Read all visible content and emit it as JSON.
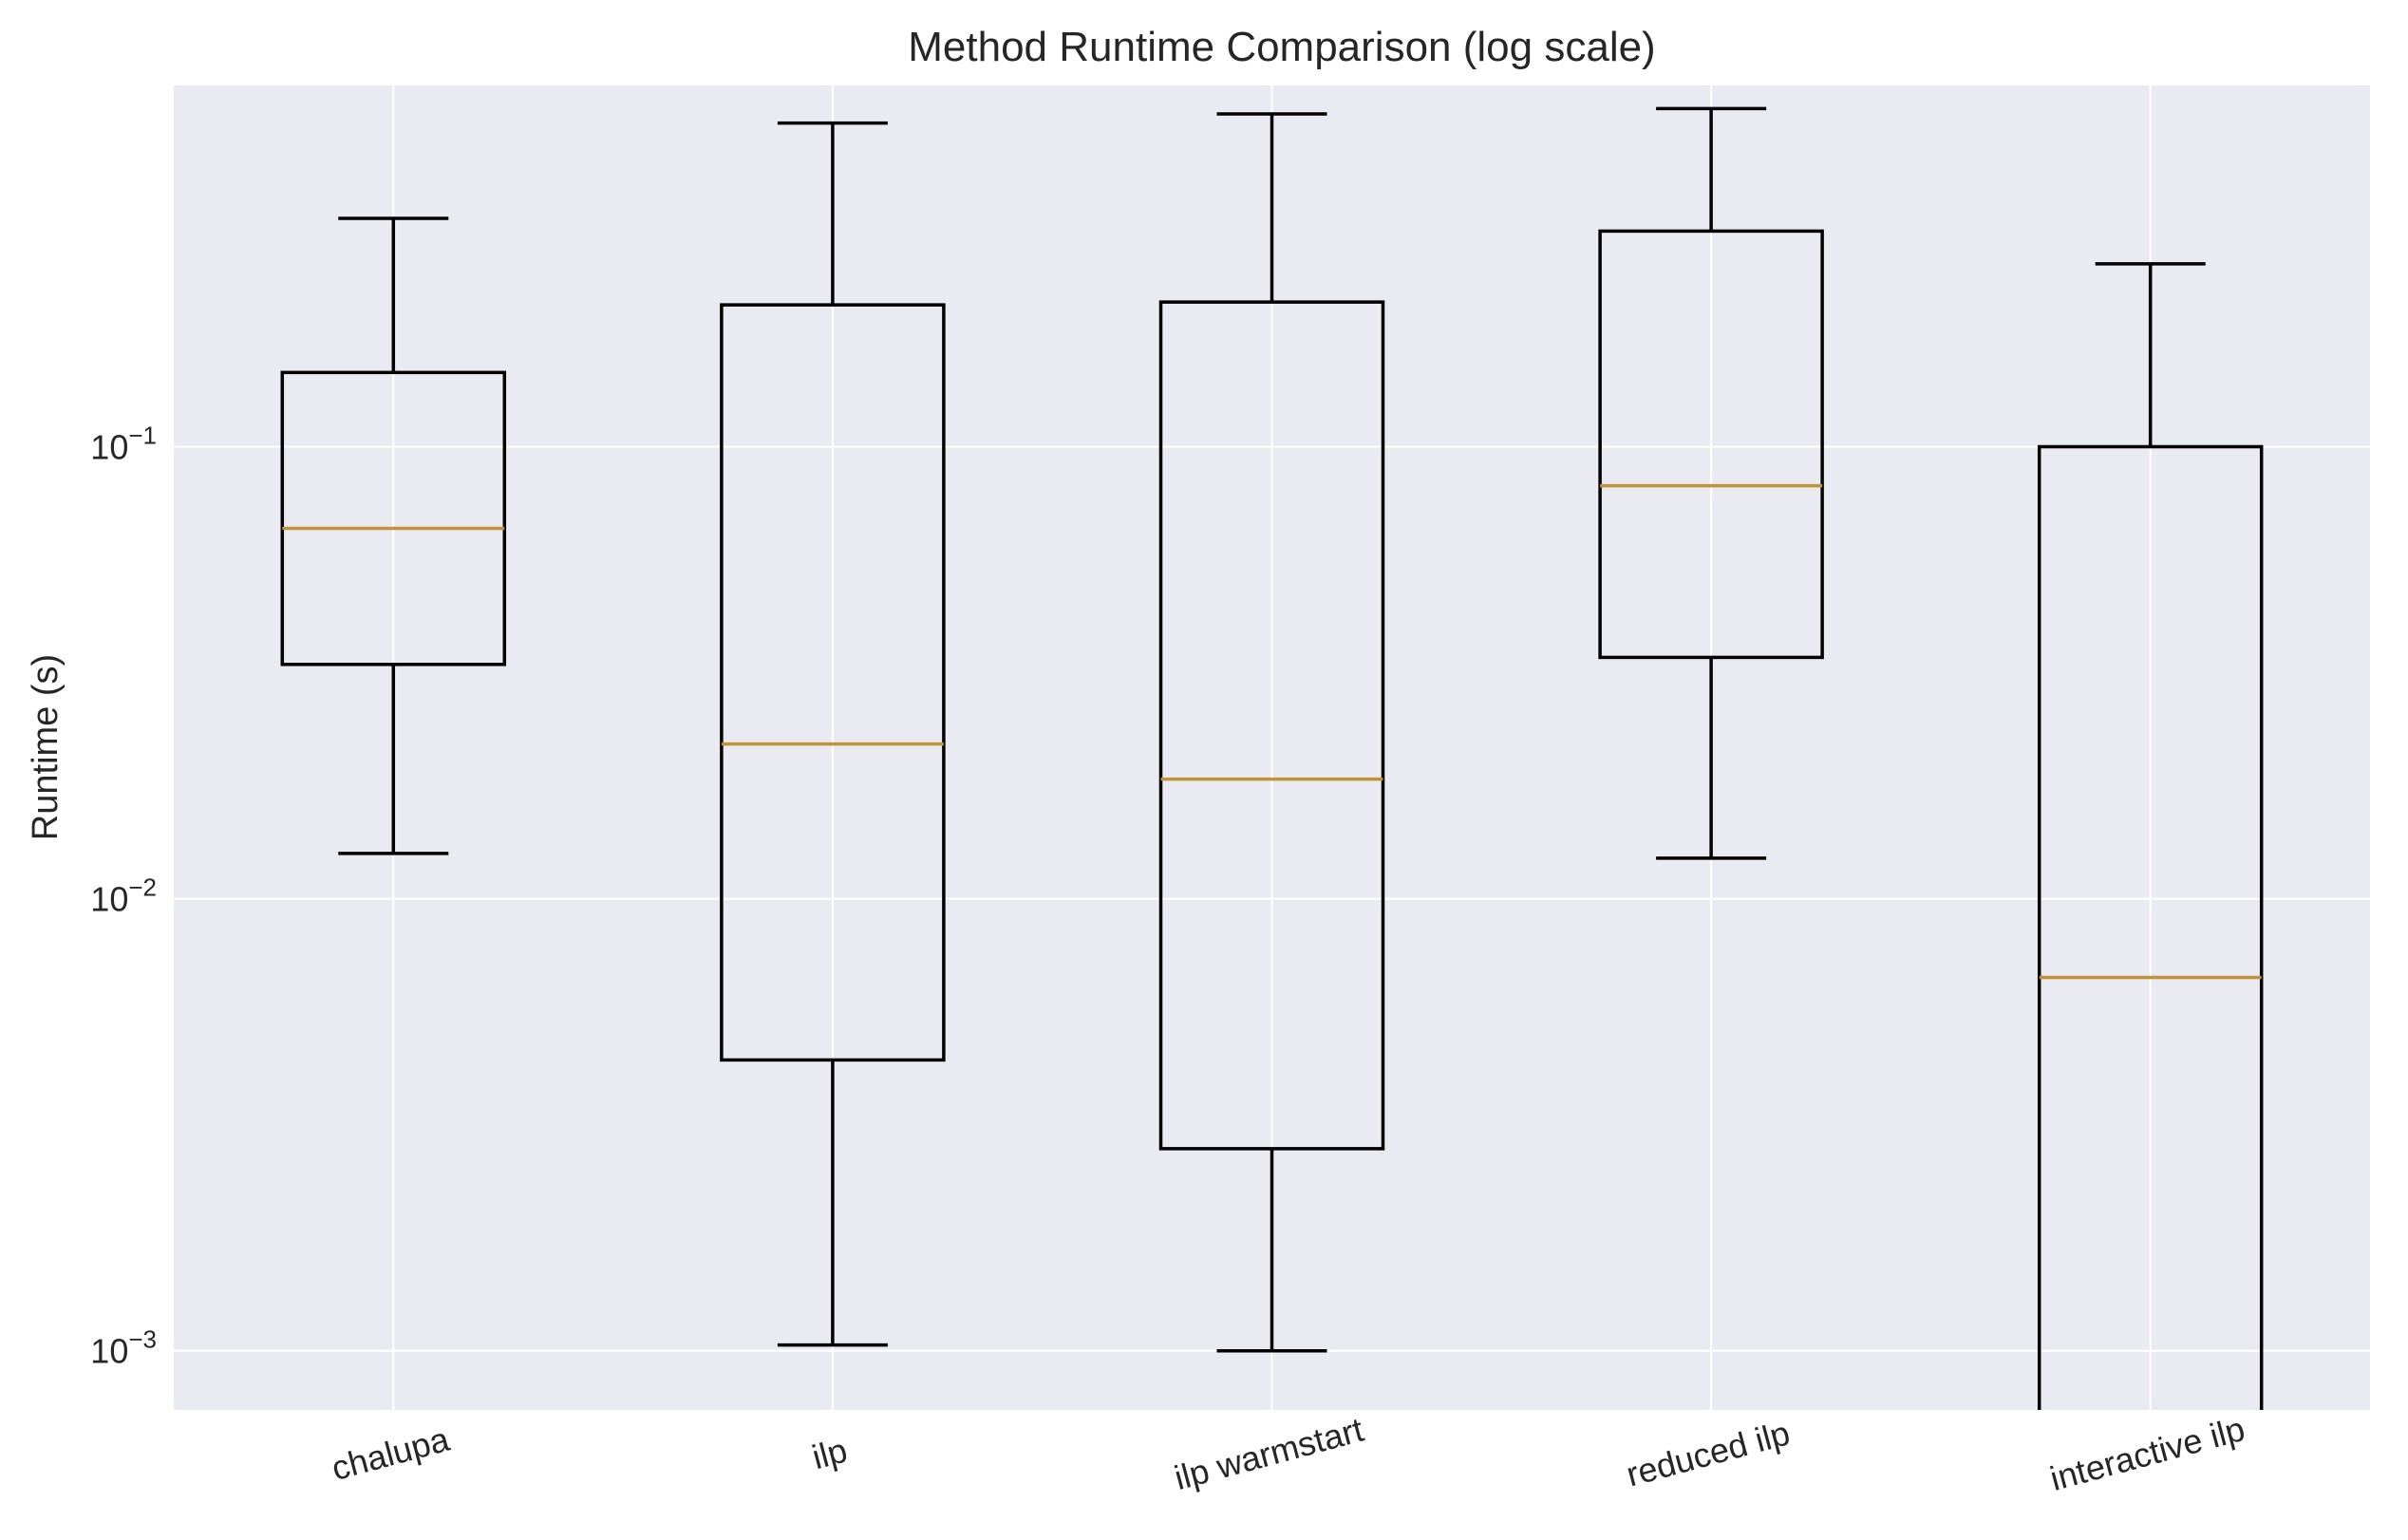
{
  "chart_data": {
    "type": "box",
    "title": "Method Runtime Comparison (log scale)",
    "xlabel": "",
    "ylabel": "Runtime (s)",
    "yscale": "log",
    "ylim": [
      0.00074,
      0.63
    ],
    "yticks": [
      {
        "value": 0.1,
        "base": "10",
        "exp": "−1"
      },
      {
        "value": 0.01,
        "base": "10",
        "exp": "−2"
      },
      {
        "value": 0.001,
        "base": "10",
        "exp": "−3"
      }
    ],
    "grid": true,
    "categories": [
      "chalupa",
      "ilp",
      "ilp warmstart",
      "reduced ilp",
      "interactive ilp"
    ],
    "boxes": [
      {
        "whisker_low": 0.0126,
        "q1": 0.033,
        "median": 0.066,
        "q3": 0.146,
        "whisker_high": 0.32
      },
      {
        "whisker_low": 0.00103,
        "q1": 0.0044,
        "median": 0.022,
        "q3": 0.206,
        "whisker_high": 0.52
      },
      {
        "whisker_low": 0.001,
        "q1": 0.0028,
        "median": 0.0184,
        "q3": 0.209,
        "whisker_high": 0.545
      },
      {
        "whisker_low": 0.0123,
        "q1": 0.0342,
        "median": 0.082,
        "q3": 0.3,
        "whisker_high": 0.56
      },
      {
        "whisker_low": 0.00074,
        "q1": 0.00074,
        "median": 0.0067,
        "q3": 0.1,
        "whisker_high": 0.254
      }
    ],
    "colors": {
      "background": "#eaeaf2",
      "grid": "#ffffff",
      "box": "#000000",
      "median": "#c09339"
    }
  }
}
